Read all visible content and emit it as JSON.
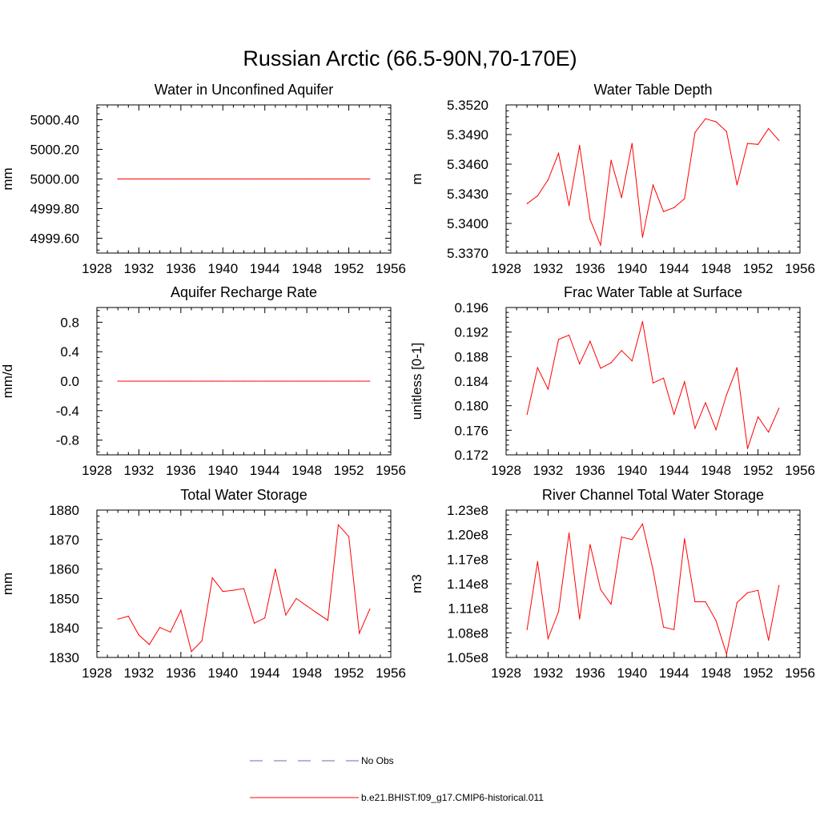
{
  "figure": {
    "title": "Russian Arctic (66.5-90N,70-170E)"
  },
  "colors": {
    "model_line": "#ff0000",
    "obs_line": "#6670b3",
    "frame": "#000000"
  },
  "legend": [
    {
      "label": "No Obs",
      "style": "dashed",
      "color": "#6670b3"
    },
    {
      "label": "b.e21.BHIST.f09_g17.CMIP6-historical.011",
      "style": "solid",
      "color": "#ff0000"
    }
  ],
  "chart_data": [
    {
      "id": "aquifer",
      "type": "line",
      "title": "Water in Unconfined Aquifer",
      "ylabel": "mm",
      "xlim": [
        1928,
        1956
      ],
      "ylim": [
        4999.5,
        5000.5
      ],
      "xticks": [
        "1928",
        "1932",
        "1936",
        "1940",
        "1944",
        "1948",
        "1952",
        "1956"
      ],
      "yticks": [
        "4999.60",
        "4999.80",
        "5000.00",
        "5000.20",
        "5000.40"
      ],
      "ytick_values": [
        4999.6,
        4999.8,
        5000.0,
        5000.2,
        5000.4
      ],
      "x": [
        1930,
        1931,
        1932,
        1933,
        1934,
        1935,
        1936,
        1937,
        1938,
        1939,
        1940,
        1941,
        1942,
        1943,
        1944,
        1945,
        1946,
        1947,
        1948,
        1949,
        1950,
        1951,
        1952,
        1953,
        1954
      ],
      "series": [
        {
          "name": "b.e21.BHIST.f09_g17.CMIP6-historical.011",
          "values": [
            5000,
            5000,
            5000,
            5000,
            5000,
            5000,
            5000,
            5000,
            5000,
            5000,
            5000,
            5000,
            5000,
            5000,
            5000,
            5000,
            5000,
            5000,
            5000,
            5000,
            5000,
            5000,
            5000,
            5000,
            5000
          ]
        }
      ]
    },
    {
      "id": "wtd",
      "type": "line",
      "title": "Water Table Depth",
      "ylabel": "m",
      "xlim": [
        1928,
        1956
      ],
      "ylim": [
        5.337,
        5.352
      ],
      "xticks": [
        "1928",
        "1932",
        "1936",
        "1940",
        "1944",
        "1948",
        "1952",
        "1956"
      ],
      "yticks": [
        "5.3370",
        "5.3400",
        "5.3430",
        "5.3460",
        "5.3490",
        "5.3520"
      ],
      "ytick_values": [
        5.337,
        5.34,
        5.343,
        5.346,
        5.349,
        5.352
      ],
      "x": [
        1930,
        1931,
        1932,
        1933,
        1934,
        1935,
        1936,
        1937,
        1938,
        1939,
        1940,
        1941,
        1942,
        1943,
        1944,
        1945,
        1946,
        1947,
        1948,
        1949,
        1950,
        1951,
        1952,
        1953,
        1954
      ],
      "series": [
        {
          "name": "b.e21.BHIST.f09_g17.CMIP6-historical.011",
          "values": [
            5.342,
            5.3428,
            5.3444,
            5.3471,
            5.3418,
            5.3479,
            5.3404,
            5.3378,
            5.3464,
            5.3426,
            5.3481,
            5.3386,
            5.3439,
            5.3412,
            5.3416,
            5.3425,
            5.3492,
            5.3506,
            5.3503,
            5.3493,
            5.3439,
            5.3481,
            5.348,
            5.3496,
            5.3484
          ]
        }
      ]
    },
    {
      "id": "recharge",
      "type": "line",
      "title": "Aquifer Recharge Rate",
      "ylabel": "mm/d",
      "xlim": [
        1928,
        1956
      ],
      "ylim": [
        -1.0,
        1.0
      ],
      "xticks": [
        "1928",
        "1932",
        "1936",
        "1940",
        "1944",
        "1948",
        "1952",
        "1956"
      ],
      "yticks": [
        "-0.8",
        "-0.4",
        "0.0",
        "0.4",
        "0.8"
      ],
      "ytick_values": [
        -0.8,
        -0.4,
        0.0,
        0.4,
        0.8
      ],
      "x": [
        1930,
        1931,
        1932,
        1933,
        1934,
        1935,
        1936,
        1937,
        1938,
        1939,
        1940,
        1941,
        1942,
        1943,
        1944,
        1945,
        1946,
        1947,
        1948,
        1949,
        1950,
        1951,
        1952,
        1953,
        1954
      ],
      "series": [
        {
          "name": "b.e21.BHIST.f09_g17.CMIP6-historical.011",
          "values": [
            0,
            0,
            0,
            0,
            0,
            0,
            0,
            0,
            0,
            0,
            0,
            0,
            0,
            0,
            0,
            0,
            0,
            0,
            0,
            0,
            0,
            0,
            0,
            0,
            0
          ]
        }
      ]
    },
    {
      "id": "fracwt",
      "type": "line",
      "title": "Frac Water Table at Surface",
      "ylabel": "unitless [0-1]",
      "xlim": [
        1928,
        1956
      ],
      "ylim": [
        0.172,
        0.196
      ],
      "xticks": [
        "1928",
        "1932",
        "1936",
        "1940",
        "1944",
        "1948",
        "1952",
        "1956"
      ],
      "yticks": [
        "0.172",
        "0.176",
        "0.180",
        "0.184",
        "0.188",
        "0.192",
        "0.196"
      ],
      "ytick_values": [
        0.172,
        0.176,
        0.18,
        0.184,
        0.188,
        0.192,
        0.196
      ],
      "x": [
        1930,
        1931,
        1932,
        1933,
        1934,
        1935,
        1936,
        1937,
        1938,
        1939,
        1940,
        1941,
        1942,
        1943,
        1944,
        1945,
        1946,
        1947,
        1948,
        1949,
        1950,
        1951,
        1952,
        1953,
        1954
      ],
      "series": [
        {
          "name": "b.e21.BHIST.f09_g17.CMIP6-historical.011",
          "values": [
            0.1786,
            0.1862,
            0.1827,
            0.1908,
            0.1915,
            0.1868,
            0.1905,
            0.1861,
            0.187,
            0.189,
            0.1873,
            0.1937,
            0.1837,
            0.1845,
            0.1786,
            0.1839,
            0.1763,
            0.1805,
            0.1761,
            0.1818,
            0.1862,
            0.173,
            0.1782,
            0.1757,
            0.1796
          ]
        }
      ]
    },
    {
      "id": "tws",
      "type": "line",
      "title": "Total Water Storage",
      "ylabel": "mm",
      "xlim": [
        1928,
        1956
      ],
      "ylim": [
        1830,
        1880
      ],
      "xticks": [
        "1928",
        "1932",
        "1936",
        "1940",
        "1944",
        "1948",
        "1952",
        "1956"
      ],
      "yticks": [
        "1830",
        "1840",
        "1850",
        "1860",
        "1870",
        "1880"
      ],
      "ytick_values": [
        1830,
        1840,
        1850,
        1860,
        1870,
        1880
      ],
      "x": [
        1930,
        1931,
        1932,
        1933,
        1934,
        1935,
        1936,
        1937,
        1938,
        1939,
        1940,
        1941,
        1942,
        1943,
        1944,
        1945,
        1946,
        1947,
        1948,
        1949,
        1950,
        1951,
        1952,
        1953,
        1954
      ],
      "series": [
        {
          "name": "b.e21.BHIST.f09_g17.CMIP6-historical.011",
          "values": [
            1843.0,
            1844.0,
            1837.6,
            1834.4,
            1840.2,
            1838.6,
            1846.0,
            1832.0,
            1835.6,
            1857.0,
            1852.4,
            1852.8,
            1853.4,
            1841.6,
            1843.4,
            1860.0,
            1844.4,
            1850.0,
            1847.5,
            1845.0,
            1842.6,
            1875.0,
            1871.0,
            1838.2,
            1846.4
          ]
        }
      ]
    },
    {
      "id": "river",
      "type": "line",
      "title": "River Channel Total Water Storage",
      "ylabel": "m3",
      "xlim": [
        1928,
        1956
      ],
      "ylim": [
        105000000.0,
        123000000.0
      ],
      "xticks": [
        "1928",
        "1932",
        "1936",
        "1940",
        "1944",
        "1948",
        "1952",
        "1956"
      ],
      "yticks": [
        "1.05e8",
        "1.08e8",
        "1.11e8",
        "1.14e8",
        "1.17e8",
        "1.20e8",
        "1.23e8"
      ],
      "ytick_values": [
        105000000.0,
        108000000.0,
        111000000.0,
        114000000.0,
        117000000.0,
        120000000.0,
        123000000.0
      ],
      "x": [
        1930,
        1931,
        1932,
        1933,
        1934,
        1935,
        1936,
        1937,
        1938,
        1939,
        1940,
        1941,
        1942,
        1943,
        1944,
        1945,
        1946,
        1947,
        1948,
        1949,
        1950,
        1951,
        1952,
        1953,
        1954
      ],
      "series": [
        {
          "name": "b.e21.BHIST.f09_g17.CMIP6-historical.011",
          "values": [
            108400000.0,
            116700000.0,
            107300000.0,
            110600000.0,
            120200000.0,
            109700000.0,
            118800000.0,
            113300000.0,
            111500000.0,
            119700000.0,
            119400000.0,
            121300000.0,
            115700000.0,
            108700000.0,
            108400000.0,
            119500000.0,
            111800000.0,
            111800000.0,
            109500000.0,
            105400000.0,
            111700000.0,
            112900000.0,
            113200000.0,
            107100000.0,
            113800000.0
          ]
        }
      ]
    }
  ]
}
